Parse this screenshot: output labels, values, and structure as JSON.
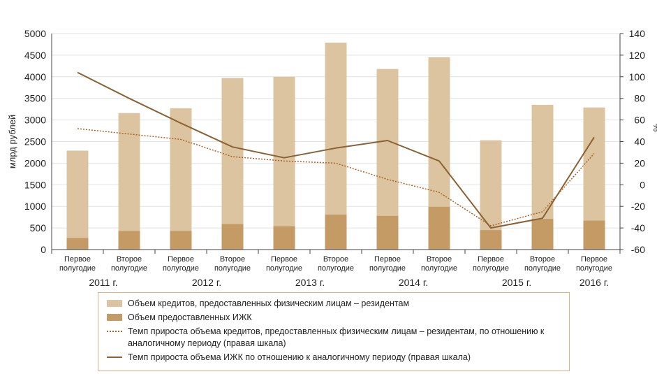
{
  "chart_data": {
    "type": "bar",
    "ylabel": "млрд рублей",
    "y2label": "%",
    "ylim": [
      0,
      5000
    ],
    "y2lim": [
      -60,
      140
    ],
    "yticks": [
      0,
      500,
      1000,
      1500,
      2000,
      2500,
      3000,
      3500,
      4000,
      4500,
      5000
    ],
    "y2ticks": [
      -60,
      -40,
      -20,
      0,
      20,
      40,
      60,
      80,
      100,
      120,
      140
    ],
    "grid": true,
    "categories": [
      "Первое полугодие",
      "Второе полугодие",
      "Первое полугодие",
      "Второе полугодие",
      "Первое полугодие",
      "Второе полугодие",
      "Первое полугодие",
      "Второе полугодие",
      "Первое полугодие",
      "Второе полугодие",
      "Первое полугодие"
    ],
    "category_lines": [
      [
        "Первое",
        "полугодие"
      ],
      [
        "Второе",
        "полугодие"
      ],
      [
        "Первое",
        "полугодие"
      ],
      [
        "Второе",
        "полугодие"
      ],
      [
        "Первое",
        "полугодие"
      ],
      [
        "Второе",
        "полугодие"
      ],
      [
        "Первое",
        "полугодие"
      ],
      [
        "Второе",
        "полугодие"
      ],
      [
        "Первое",
        "полугодие"
      ],
      [
        "Второе",
        "полугодие"
      ],
      [
        "Первое",
        "полугодие"
      ]
    ],
    "year_labels": [
      {
        "label": "2011 г.",
        "categories": [
          0,
          1
        ]
      },
      {
        "label": "2012 г.",
        "categories": [
          2,
          3
        ]
      },
      {
        "label": "2013 г.",
        "categories": [
          4,
          5
        ]
      },
      {
        "label": "2014 г.",
        "categories": [
          6,
          7
        ]
      },
      {
        "label": "2015 г.",
        "categories": [
          8,
          9
        ]
      },
      {
        "label": "2016 г.",
        "categories": [
          10
        ]
      }
    ],
    "series": [
      {
        "name": "Объем кредитов, предоставленных физическим лицам – резидентам",
        "type": "bar",
        "axis": "left",
        "color": "#dcc4a0",
        "values": [
          2290,
          3160,
          3270,
          3970,
          4000,
          4790,
          4180,
          4450,
          2530,
          3350,
          3290
        ]
      },
      {
        "name": "Объем предоставленных ИЖК",
        "type": "bar",
        "axis": "left",
        "color": "#c49a65",
        "values": [
          270,
          430,
          430,
          590,
          540,
          810,
          780,
          990,
          450,
          710,
          670
        ]
      },
      {
        "name": "Темп прироста объема кредитов, предоставленных физическим лицам – резидентам, по отношению к аналогичному периоду (правая шкала)",
        "type": "line",
        "axis": "right",
        "style": "dotted",
        "color": "#a8642a",
        "values": [
          52,
          47,
          42,
          26,
          22,
          20,
          5,
          -7,
          -38,
          -25,
          29
        ]
      },
      {
        "name": "Темп прироста объема ИЖК по отношению к аналогичному периоду (правая шкала)",
        "type": "line",
        "axis": "right",
        "style": "solid",
        "color": "#8a6235",
        "values": [
          104,
          80,
          57,
          35,
          25,
          34,
          41,
          22,
          -40,
          -31,
          44
        ]
      }
    ],
    "legend_position": "bottom"
  },
  "legend": {
    "items": [
      {
        "kind": "bar",
        "color": "#dcc4a0",
        "label": "Объем кредитов, предоставленных физическим лицам – резидентам"
      },
      {
        "kind": "bar",
        "color": "#c49a65",
        "label": "Объем предоставленных ИЖК"
      },
      {
        "kind": "dotted",
        "label": "Темп прироста объема кредитов, предоставленных физическим лицам – резидентам, по отношению к аналогичному периоду (правая шкала)"
      },
      {
        "kind": "solid",
        "label": "Темп прироста объема ИЖК по отношению к аналогичному периоду (правая шкала)"
      }
    ]
  }
}
